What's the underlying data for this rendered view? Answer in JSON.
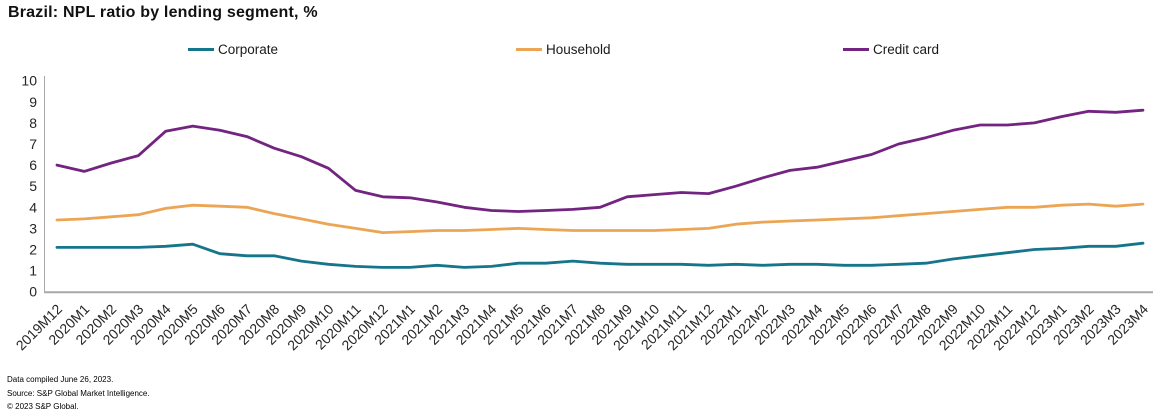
{
  "title": "Brazil: NPL ratio by lending segment, %",
  "footer": {
    "line1": "Data compiled June 26, 2023.",
    "line2": "Source: S&P Global Market Intelligence.",
    "line3": "© 2023 S&P Global."
  },
  "chart_data": {
    "type": "line",
    "title": "Brazil: NPL ratio by lending segment, %",
    "xlabel": "",
    "ylabel": "",
    "ylim": [
      0,
      10
    ],
    "yticks": [
      0,
      1,
      2,
      3,
      4,
      5,
      6,
      7,
      8,
      9,
      10
    ],
    "grid": false,
    "legend_position": "top",
    "axis_color": "#a8a8a8",
    "text_color": "#262626",
    "categories": [
      "2019M12",
      "2020M1",
      "2020M2",
      "2020M3",
      "2020M4",
      "2020M5",
      "2020M6",
      "2020M7",
      "2020M8",
      "2020M9",
      "2020M10",
      "2020M11",
      "2020M12",
      "2021M1",
      "2021M2",
      "2021M3",
      "2021M4",
      "2021M5",
      "2021M6",
      "2021M7",
      "2021M8",
      "2021M9",
      "2021M10",
      "2021M11",
      "2021M12",
      "2022M1",
      "2022M2",
      "2022M3",
      "2022M4",
      "2022M5",
      "2022M6",
      "2022M7",
      "2022M8",
      "2022M9",
      "2022M10",
      "2022M11",
      "2022M12",
      "2023M1",
      "2023M2",
      "2023M3",
      "2023M4"
    ],
    "series": [
      {
        "name": "Corporate",
        "color": "#15758a",
        "values": [
          2.1,
          2.1,
          2.1,
          2.1,
          2.15,
          2.25,
          1.8,
          1.7,
          1.7,
          1.45,
          1.3,
          1.2,
          1.15,
          1.15,
          1.25,
          1.15,
          1.2,
          1.35,
          1.35,
          1.45,
          1.35,
          1.3,
          1.3,
          1.3,
          1.25,
          1.3,
          1.25,
          1.3,
          1.3,
          1.25,
          1.25,
          1.3,
          1.35,
          1.55,
          1.7,
          1.85,
          2.0,
          2.05,
          2.15,
          2.15,
          2.3
        ]
      },
      {
        "name": "Household",
        "color": "#eba555",
        "values": [
          3.4,
          3.45,
          3.55,
          3.65,
          3.95,
          4.1,
          4.05,
          4.0,
          3.7,
          3.45,
          3.2,
          3.0,
          2.8,
          2.85,
          2.9,
          2.9,
          2.95,
          3.0,
          2.95,
          2.9,
          2.9,
          2.9,
          2.9,
          2.95,
          3.0,
          3.2,
          3.3,
          3.35,
          3.4,
          3.45,
          3.5,
          3.6,
          3.7,
          3.8,
          3.9,
          4.0,
          4.0,
          4.1,
          4.15,
          4.05,
          4.15
        ]
      },
      {
        "name": "Credit card",
        "color": "#732380",
        "values": [
          6.0,
          5.7,
          6.1,
          6.45,
          7.6,
          7.85,
          7.65,
          7.35,
          6.8,
          6.4,
          5.85,
          4.8,
          4.5,
          4.45,
          4.25,
          4.0,
          3.85,
          3.8,
          3.85,
          3.9,
          4.0,
          4.5,
          4.6,
          4.7,
          4.65,
          5.0,
          5.4,
          5.75,
          5.9,
          6.2,
          6.5,
          7.0,
          7.3,
          7.65,
          7.9,
          7.9,
          8.0,
          8.3,
          8.55,
          8.5,
          8.6
        ]
      }
    ]
  }
}
